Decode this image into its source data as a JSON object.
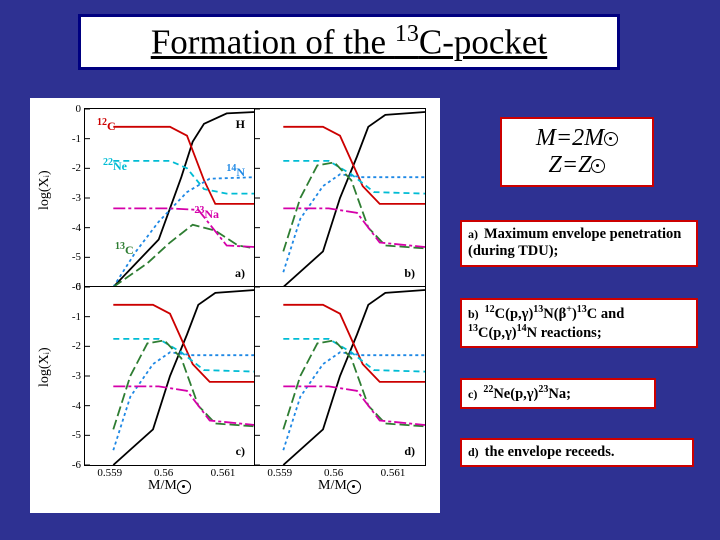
{
  "title": {
    "pre": "Formation of the ",
    "sup": "13",
    "post": "C-pocket"
  },
  "chart": {
    "ylabel": "log(Xᵢ)",
    "xlabel": "M/M☉",
    "ylim": [
      -6,
      0
    ],
    "yticks": [
      0,
      -1,
      -2,
      -3,
      -4,
      -5,
      -6
    ],
    "xlim": [
      0.5585,
      0.5615
    ],
    "xticks": [
      "0.559",
      "0.56",
      "0.561"
    ],
    "panel_labels": {
      "a": "a)",
      "b": "b)",
      "c": "c)",
      "d": "d)"
    },
    "species": {
      "H": {
        "label": "H",
        "color": "#000000",
        "dash": "none"
      },
      "c12": {
        "label": "12C",
        "color": "#cc0000",
        "dash": "none",
        "sup": "12",
        "base": "C"
      },
      "ne22": {
        "label": "22Ne",
        "color": "#00bcd4",
        "dash": "6 4",
        "sup": "22",
        "base": "Ne"
      },
      "n14": {
        "label": "14N",
        "color": "#1e88e5",
        "dash": "3 3",
        "sup": "14",
        "base": "N"
      },
      "c13": {
        "label": "13C",
        "color": "#2e7d32",
        "dash": "10 4",
        "sup": "13",
        "base": "C"
      },
      "na23": {
        "label": "23Na",
        "color": "#d500a9",
        "dash": "12 3 3 3",
        "sup": "23",
        "base": "Na"
      }
    }
  },
  "series_a": {
    "H": [
      [
        0.559,
        -6
      ],
      [
        0.5598,
        -4.4
      ],
      [
        0.5602,
        -2.3
      ],
      [
        0.5604,
        -1.1
      ],
      [
        0.5606,
        -0.5
      ],
      [
        0.561,
        -0.15
      ],
      [
        0.5615,
        -0.1
      ]
    ],
    "c12": [
      [
        0.559,
        -0.6
      ],
      [
        0.56,
        -0.6
      ],
      [
        0.5603,
        -0.9
      ],
      [
        0.5606,
        -2.4
      ],
      [
        0.5608,
        -3.2
      ],
      [
        0.561,
        -3.2
      ],
      [
        0.5615,
        -3.2
      ]
    ],
    "ne22": [
      [
        0.559,
        -1.75
      ],
      [
        0.56,
        -1.75
      ],
      [
        0.5603,
        -2.0
      ],
      [
        0.5606,
        -2.7
      ],
      [
        0.561,
        -2.85
      ],
      [
        0.5615,
        -2.85
      ]
    ],
    "n14": [
      [
        0.559,
        -6
      ],
      [
        0.5594,
        -4.8
      ],
      [
        0.5598,
        -3.8
      ],
      [
        0.5603,
        -2.8
      ],
      [
        0.5607,
        -2.35
      ],
      [
        0.5615,
        -2.3
      ]
    ],
    "c13": [
      [
        0.559,
        -6
      ],
      [
        0.5596,
        -5.2
      ],
      [
        0.56,
        -4.5
      ],
      [
        0.5604,
        -3.9
      ],
      [
        0.5608,
        -4.1
      ],
      [
        0.5612,
        -4.6
      ],
      [
        0.5615,
        -4.7
      ]
    ],
    "na23": [
      [
        0.559,
        -3.35
      ],
      [
        0.56,
        -3.35
      ],
      [
        0.5605,
        -3.4
      ],
      [
        0.561,
        -4.6
      ],
      [
        0.5615,
        -4.65
      ]
    ]
  },
  "series_b": {
    "H": [
      [
        0.559,
        -6
      ],
      [
        0.5597,
        -4.8
      ],
      [
        0.56,
        -3.0
      ],
      [
        0.5603,
        -1.6
      ],
      [
        0.5605,
        -0.6
      ],
      [
        0.5608,
        -0.2
      ],
      [
        0.5615,
        -0.1
      ]
    ],
    "c12": [
      [
        0.559,
        -0.6
      ],
      [
        0.5597,
        -0.6
      ],
      [
        0.56,
        -0.9
      ],
      [
        0.5604,
        -2.6
      ],
      [
        0.5607,
        -3.2
      ],
      [
        0.5615,
        -3.2
      ]
    ],
    "ne22": [
      [
        0.559,
        -1.75
      ],
      [
        0.5598,
        -1.75
      ],
      [
        0.5602,
        -2.2
      ],
      [
        0.5606,
        -2.8
      ],
      [
        0.5615,
        -2.85
      ]
    ],
    "n14": [
      [
        0.559,
        -5.5
      ],
      [
        0.5593,
        -3.7
      ],
      [
        0.5597,
        -2.6
      ],
      [
        0.56,
        -2.2
      ],
      [
        0.5604,
        -2.3
      ],
      [
        0.5608,
        -2.3
      ],
      [
        0.5615,
        -2.3
      ]
    ],
    "c13": [
      [
        0.559,
        -4.8
      ],
      [
        0.5593,
        -3.0
      ],
      [
        0.5596,
        -1.9
      ],
      [
        0.5599,
        -1.8
      ],
      [
        0.5602,
        -2.4
      ],
      [
        0.5605,
        -4.0
      ],
      [
        0.5608,
        -4.6
      ],
      [
        0.5615,
        -4.7
      ]
    ],
    "na23": [
      [
        0.559,
        -3.35
      ],
      [
        0.5598,
        -3.35
      ],
      [
        0.5603,
        -3.5
      ],
      [
        0.5607,
        -4.5
      ],
      [
        0.5615,
        -4.65
      ]
    ]
  },
  "mz": {
    "line1_pre": "M=2M",
    "line1_sun": true,
    "line2_pre": "Z=Z",
    "line2_sun": true
  },
  "ann_a": {
    "tag": "a)",
    "text": "Maximum envelope penetration (during TDU);"
  },
  "ann_b": {
    "tag": "b)",
    "segments_html": "<sup>12</sup>C(p,γ)<sup>13</sup>N(β<sup>+</sup>)<sup>13</sup>C and <sup>13</sup>C(p,γ)<sup>14</sup>N reactions;"
  },
  "ann_c": {
    "tag": "c)",
    "segments_html": "<sup>22</sup>Ne(p,γ)<sup>23</sup>Na;"
  },
  "ann_d": {
    "tag": "d)",
    "text": "the envelope receeds."
  },
  "colors": {
    "bg": "#2e3192",
    "title_border": "#000080",
    "ann_border": "#cc0000"
  }
}
